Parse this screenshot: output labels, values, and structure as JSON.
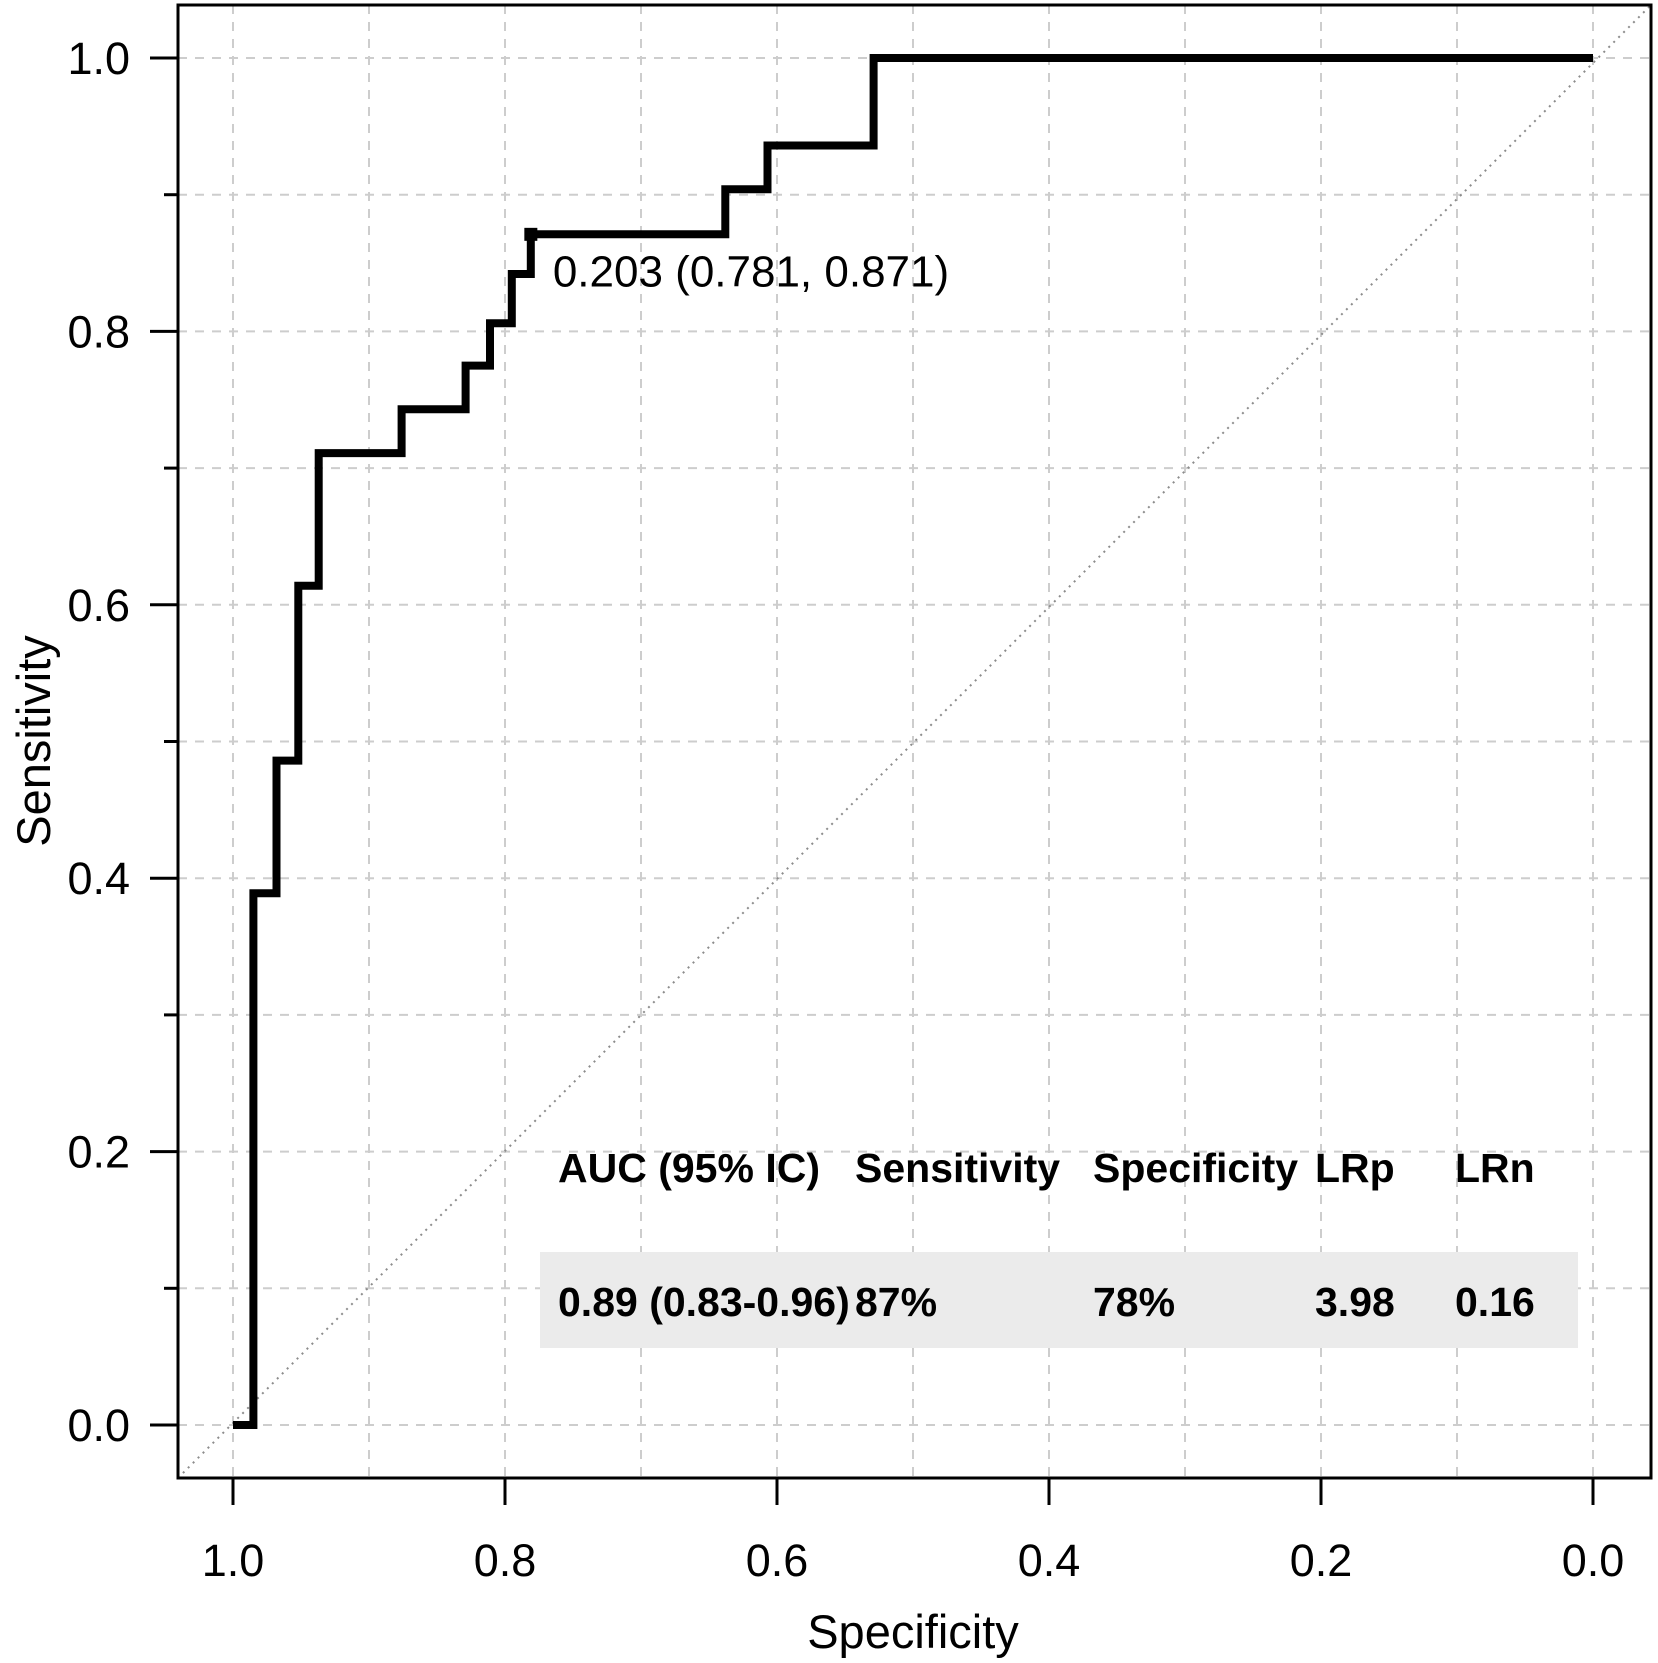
{
  "chart_data": {
    "type": "line",
    "variant": "roc-step-curve",
    "title": "",
    "xlabel": "Specificity",
    "ylabel": "Sensitivity",
    "x_axis": {
      "label": "Specificity",
      "direction": "reversed",
      "tick_labels": [
        "1.0",
        "0.8",
        "0.6",
        "0.4",
        "0.2",
        "0.0"
      ],
      "tick_values": [
        1.0,
        0.8,
        0.6,
        0.4,
        0.2,
        0.0
      ],
      "range": [
        1.04,
        -0.04
      ]
    },
    "y_axis": {
      "label": "Sensitivity",
      "tick_labels": [
        "1.0",
        "0.8",
        "0.6",
        "0.4",
        "0.2",
        "0.0"
      ],
      "tick_values": [
        1.0,
        0.8,
        0.6,
        0.4,
        0.2,
        0.0
      ],
      "minor_tick_values": [
        0.9,
        0.7,
        0.5,
        0.3,
        0.1
      ],
      "range": [
        -0.04,
        1.04
      ]
    },
    "grid": true,
    "grid_values": [
      0.0,
      0.1,
      0.2,
      0.3,
      0.4,
      0.5,
      0.6,
      0.7,
      0.8,
      0.9,
      1.0
    ],
    "series": [
      {
        "name": "ROC curve",
        "color": "#000000",
        "vertices_specificity_sensitivity": [
          [
            1.0,
            0.0
          ],
          [
            0.985,
            0.0
          ],
          [
            0.985,
            0.389
          ],
          [
            0.968,
            0.389
          ],
          [
            0.968,
            0.486
          ],
          [
            0.952,
            0.486
          ],
          [
            0.952,
            0.614
          ],
          [
            0.937,
            0.614
          ],
          [
            0.937,
            0.711
          ],
          [
            0.876,
            0.711
          ],
          [
            0.876,
            0.743
          ],
          [
            0.829,
            0.743
          ],
          [
            0.829,
            0.775
          ],
          [
            0.811,
            0.775
          ],
          [
            0.811,
            0.806
          ],
          [
            0.795,
            0.806
          ],
          [
            0.795,
            0.842
          ],
          [
            0.781,
            0.842
          ],
          [
            0.781,
            0.871
          ],
          [
            0.638,
            0.871
          ],
          [
            0.638,
            0.904
          ],
          [
            0.607,
            0.904
          ],
          [
            0.607,
            0.936
          ],
          [
            0.529,
            0.936
          ],
          [
            0.529,
            1.0
          ],
          [
            0.0,
            1.0
          ]
        ]
      }
    ],
    "reference_line": {
      "name": "chance diagonal",
      "from_specificity_sensitivity": [
        1.0,
        0.0
      ],
      "to_specificity_sensitivity": [
        0.0,
        1.0
      ]
    },
    "annotation": {
      "text": "0.203 (0.781, 0.871)",
      "threshold": 0.203,
      "specificity": 0.781,
      "sensitivity": 0.871
    }
  },
  "table": {
    "headers": [
      "AUC (95% IC)",
      "Sensitivity",
      "Specificity",
      "LRp",
      "LRn"
    ],
    "values": [
      "0.89 (0.83-0.96)",
      "87%",
      "78%",
      "3.98",
      "0.16"
    ]
  },
  "colors": {
    "curve": "#000000",
    "diagonal": "#8c8c8c",
    "grid": "#cdcdcd",
    "plot_border": "#000000",
    "annotation_text": "#333e4f",
    "table_band": "#ebebeb",
    "text": "#000000",
    "background": "#ffffff"
  }
}
